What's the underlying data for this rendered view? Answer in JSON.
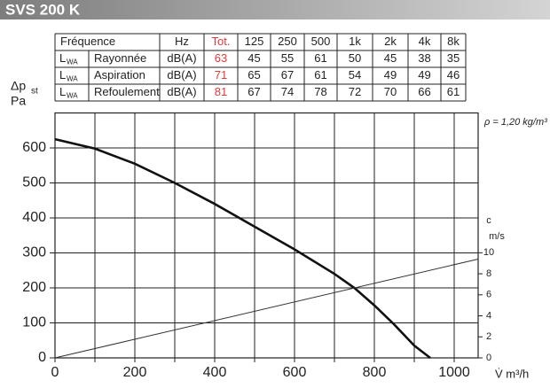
{
  "header": {
    "title": "SVS 200 K"
  },
  "table": {
    "header": [
      "Fréquence",
      "Hz",
      "Tot.",
      "125",
      "250",
      "500",
      "1k",
      "2k",
      "4k",
      "8k"
    ],
    "rows": [
      {
        "symbol": "L",
        "symbol_sub": "WA",
        "name": "Rayonnée",
        "unit": "dB(A)",
        "total": 63,
        "bands": [
          45,
          55,
          61,
          50,
          45,
          38,
          35
        ]
      },
      {
        "symbol": "L",
        "symbol_sub": "WA",
        "name": "Aspiration",
        "unit": "dB(A)",
        "total": 71,
        "bands": [
          65,
          67,
          61,
          54,
          49,
          49,
          46
        ]
      },
      {
        "symbol": "L",
        "symbol_sub": "WA",
        "name": "Refoulement",
        "unit": "dB(A)",
        "total": 81,
        "bands": [
          67,
          74,
          78,
          72,
          70,
          66,
          61
        ]
      }
    ],
    "total_color": "#e03a3a"
  },
  "chart_data": {
    "type": "line",
    "y_label": "Δp",
    "y_label_sub": "st",
    "y_unit": "Pa",
    "y2_label": "c",
    "y2_unit": "m/s",
    "x_label": "V̇ m³/h",
    "annotation": "ρ = 1,20 kg/m³",
    "xlim": [
      0,
      1060
    ],
    "xticks": [
      0,
      200,
      400,
      600,
      800,
      1000
    ],
    "x_minor_ticks": [
      100,
      300,
      500,
      700,
      900
    ],
    "ylim": [
      0,
      700
    ],
    "yticks": [
      0,
      100,
      200,
      300,
      400,
      500,
      600
    ],
    "y2lim": [
      0,
      23.3
    ],
    "y2ticks": [
      0,
      2,
      4,
      6,
      8,
      10
    ],
    "grid": true,
    "series": [
      {
        "color": "#111111",
        "x": [
          0,
          100,
          200,
          300,
          400,
          500,
          600,
          700,
          750,
          800,
          850,
          900,
          940
        ],
        "values": [
          625,
          598,
          555,
          500,
          440,
          375,
          310,
          240,
          200,
          150,
          95,
          35,
          0
        ]
      },
      {
        "color": "#333333",
        "axis": "y2",
        "x": [
          0,
          1060
        ],
        "values": [
          0,
          9.4
        ]
      }
    ]
  }
}
